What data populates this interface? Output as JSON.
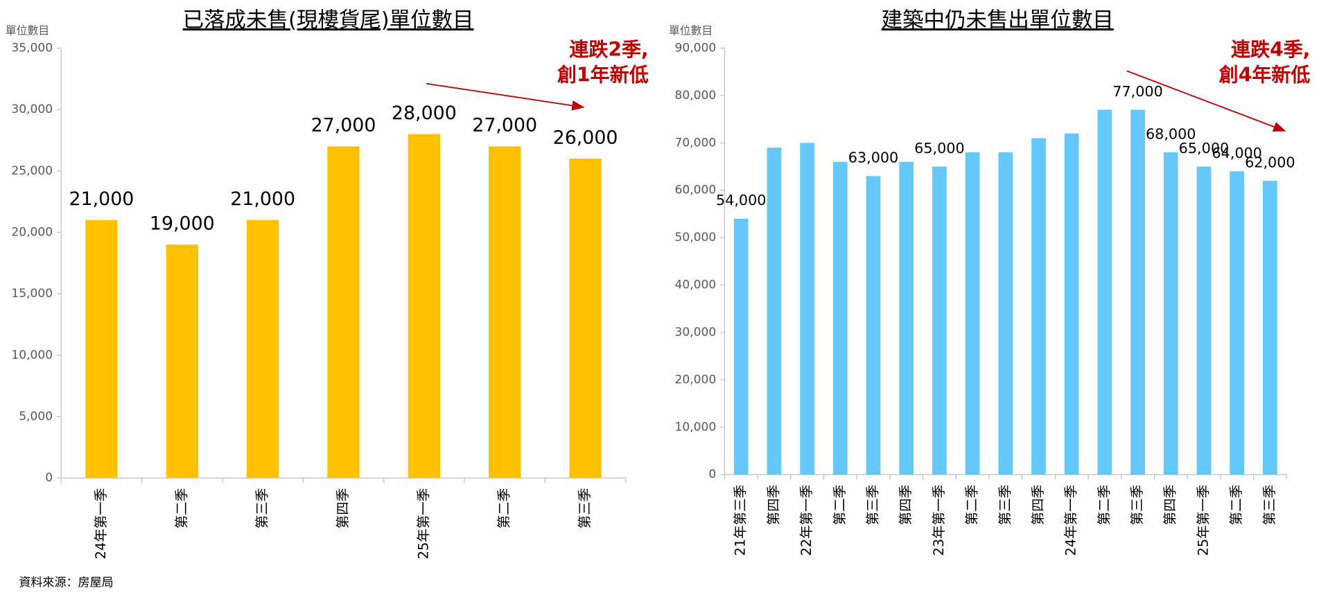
{
  "chart_data": [
    {
      "type": "bar",
      "title": "已落成未售(現樓貨尾)單位數目",
      "y_label": "單位數目",
      "categories": [
        "24年第一季",
        "第二季",
        "第三季",
        "第四季",
        "25年第一季",
        "第二季",
        "第三季"
      ],
      "values": [
        21000,
        19000,
        21000,
        27000,
        28000,
        27000,
        26000
      ],
      "value_labels": [
        "21,000",
        "19,000",
        "21,000",
        "27,000",
        "28,000",
        "27,000",
        "26,000"
      ],
      "color": "#ffc000",
      "ylim": [
        0,
        35000
      ],
      "yticks": [
        0,
        {
          "value": 5000,
          "label": "5,000"
        },
        {
          "value": 10000,
          "label": "10,000"
        },
        {
          "value": 15000,
          "label": "15,000"
        },
        {
          "value": 20000,
          "label": "20,000"
        },
        {
          "value": 25000,
          "label": "25,000"
        },
        {
          "value": 30000,
          "label": "30,000"
        },
        {
          "value": 35000,
          "label": "35,000"
        }
      ],
      "annotation": [
        "連跌2季,",
        "創1年新低"
      ]
    },
    {
      "type": "bar",
      "title": "建築中仍未售出單位數目",
      "y_label": "單位數目",
      "categories": [
        "21年第三季",
        "第四季",
        "22年第一季",
        "第二季",
        "第三季",
        "第四季",
        "23年第一季",
        "第二季",
        "第三季",
        "第四季",
        "24年第一季",
        "第二季",
        "第三季",
        "第四季",
        "25年第一季",
        "第二季",
        "第三季"
      ],
      "values": [
        54000,
        69000,
        70000,
        66000,
        63000,
        66000,
        65000,
        68000,
        68000,
        71000,
        72000,
        77000,
        77000,
        68000,
        65000,
        64000,
        62000
      ],
      "value_labels": [
        "54,000",
        null,
        null,
        null,
        "63,000",
        null,
        "65,000",
        null,
        null,
        null,
        null,
        null,
        "77,000",
        "68,000",
        "65,000",
        "64,000",
        "62,000"
      ],
      "color": "#66c8fa",
      "ylim": [
        0,
        90000
      ],
      "yticks": [
        0,
        {
          "value": 10000,
          "label": "10,000"
        },
        {
          "value": 20000,
          "label": "20,000"
        },
        {
          "value": 30000,
          "label": "30,000"
        },
        {
          "value": 40000,
          "label": "40,000"
        },
        {
          "value": 50000,
          "label": "50,000"
        },
        {
          "value": 60000,
          "label": "60,000"
        },
        {
          "value": 70000,
          "label": "70,000"
        },
        {
          "value": 80000,
          "label": "80,000"
        },
        {
          "value": 90000,
          "label": "90,000"
        }
      ],
      "annotation": [
        "連跌4季,",
        "創4年新低"
      ]
    }
  ],
  "source": "資料來源：房屋局"
}
